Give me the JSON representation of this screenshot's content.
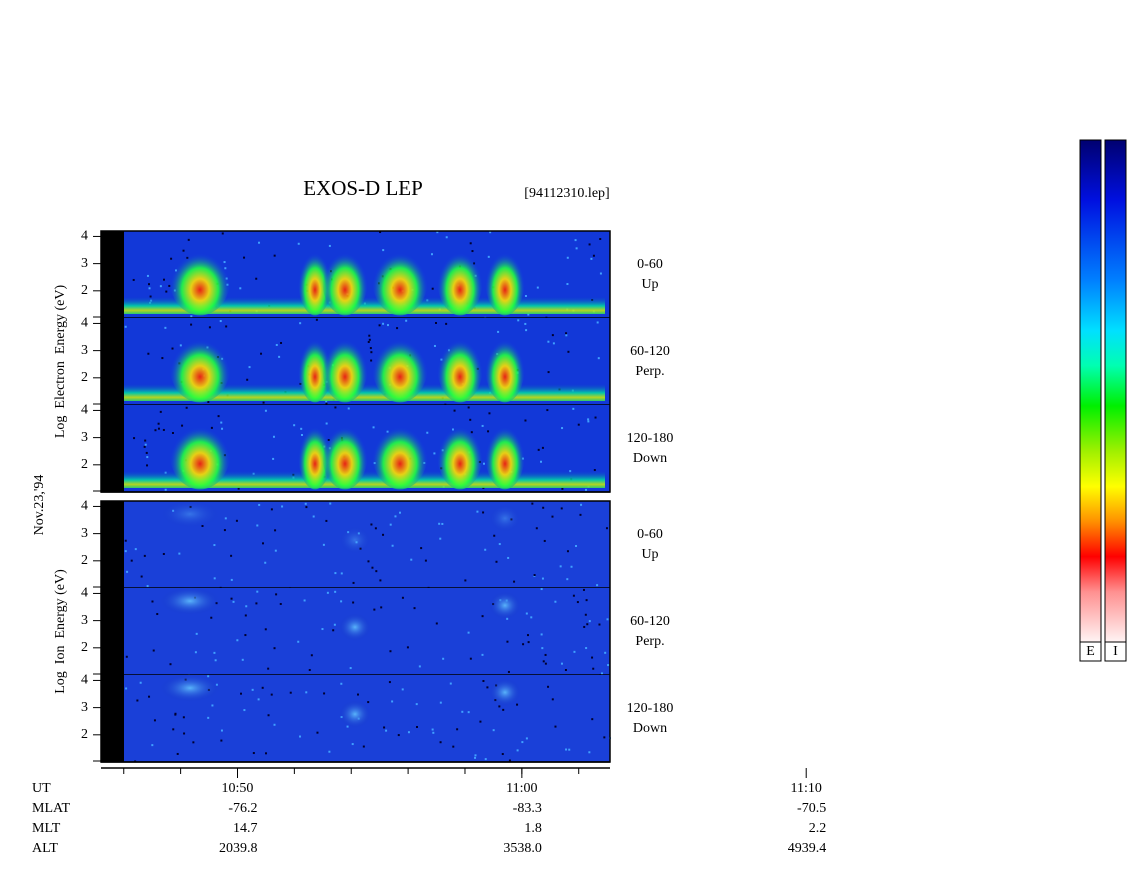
{
  "chart_data": {
    "type": "spectrogram",
    "title": "EXOS-D LEP",
    "file": "[94112310.lep]",
    "date_label": "Nov.23,'94",
    "ylim": [
      1,
      4.2
    ],
    "yticks": [
      2,
      3,
      4
    ],
    "xlim": [
      645.2,
      663.1
    ],
    "xticks": [
      {
        "value": 650,
        "label": "10:50"
      },
      {
        "value": 660,
        "label": "11:00"
      },
      {
        "value": 670,
        "label": "11:10"
      }
    ],
    "groups": [
      {
        "ylabel": "Log  Electron  Energy (eV)",
        "panels": [
          {
            "range": "0-60",
            "direction": "Up"
          },
          {
            "range": "60-120",
            "direction": "Perp."
          },
          {
            "range": "120-180",
            "direction": "Down"
          }
        ]
      },
      {
        "ylabel": "Log  Ion  Energy (eV)",
        "panels": [
          {
            "range": "0-60",
            "direction": "Up"
          },
          {
            "range": "60-120",
            "direction": "Perp."
          },
          {
            "range": "120-180",
            "direction": "Down"
          }
        ]
      }
    ],
    "ephemeris": [
      {
        "name": "MLAT",
        "values": [
          "-76.2",
          "-83.3",
          "-70.5"
        ]
      },
      {
        "name": "MLT",
        "values": [
          "14.7",
          "1.8",
          "2.2"
        ]
      },
      {
        "name": "ALT",
        "values": [
          "2039.8",
          "3538.0",
          "4939.4"
        ]
      }
    ],
    "ut_label": "UT",
    "colorbars": [
      "E",
      "I"
    ]
  }
}
